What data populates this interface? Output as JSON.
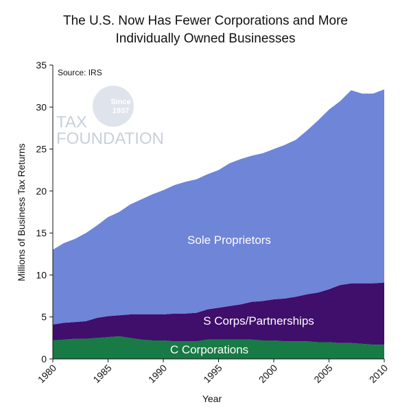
{
  "chart_data": {
    "type": "area",
    "title_line1": "The U.S. Now Has Fewer Corporations and More",
    "title_line2": "Individually Owned Businesses",
    "xlabel": "Year",
    "ylabel": "Millions of Business Tax Returns",
    "source": "Source: IRS",
    "logo": {
      "line1": "TAX",
      "line2": "FOUNDATION",
      "badge1": "Since",
      "badge2": "1937"
    },
    "xlim": [
      1980,
      2010
    ],
    "ylim": [
      0,
      35
    ],
    "x_ticks": [
      1980,
      1985,
      1990,
      1995,
      2000,
      2005,
      2010
    ],
    "y_ticks": [
      0,
      5,
      10,
      15,
      20,
      25,
      30,
      35
    ],
    "x": [
      1980,
      1981,
      1982,
      1983,
      1984,
      1985,
      1986,
      1987,
      1988,
      1989,
      1990,
      1991,
      1992,
      1993,
      1994,
      1995,
      1996,
      1997,
      1998,
      1999,
      2000,
      2001,
      2002,
      2003,
      2004,
      2005,
      2006,
      2007,
      2008,
      2009,
      2010
    ],
    "series": [
      {
        "name": "C Corporations",
        "color": "#187a45",
        "values": [
          2.2,
          2.3,
          2.4,
          2.4,
          2.5,
          2.6,
          2.7,
          2.5,
          2.3,
          2.2,
          2.2,
          2.1,
          2.1,
          2.1,
          2.3,
          2.3,
          2.3,
          2.3,
          2.3,
          2.2,
          2.2,
          2.1,
          2.1,
          2.1,
          2.0,
          2.0,
          1.9,
          1.9,
          1.8,
          1.7,
          1.7
        ]
      },
      {
        "name": "S Corps/Partnerships",
        "color": "#3f0f6b",
        "values": [
          1.9,
          2.0,
          2.0,
          2.1,
          2.4,
          2.5,
          2.5,
          2.8,
          3.0,
          3.1,
          3.1,
          3.3,
          3.3,
          3.4,
          3.6,
          3.8,
          4.0,
          4.2,
          4.5,
          4.7,
          4.9,
          5.1,
          5.3,
          5.6,
          5.9,
          6.3,
          6.9,
          7.1,
          7.2,
          7.3,
          7.4
        ]
      },
      {
        "name": "Sole Proprietors",
        "color": "#6e85d8",
        "values": [
          8.9,
          9.5,
          9.9,
          10.5,
          11.0,
          11.8,
          12.3,
          13.1,
          13.7,
          14.3,
          14.8,
          15.3,
          15.7,
          15.9,
          16.1,
          16.4,
          17.0,
          17.3,
          17.4,
          17.6,
          17.9,
          18.3,
          18.7,
          19.5,
          20.5,
          21.4,
          21.9,
          23.0,
          22.6,
          22.6,
          23.0
        ]
      }
    ],
    "grid": false,
    "legend": "labels on areas"
  }
}
